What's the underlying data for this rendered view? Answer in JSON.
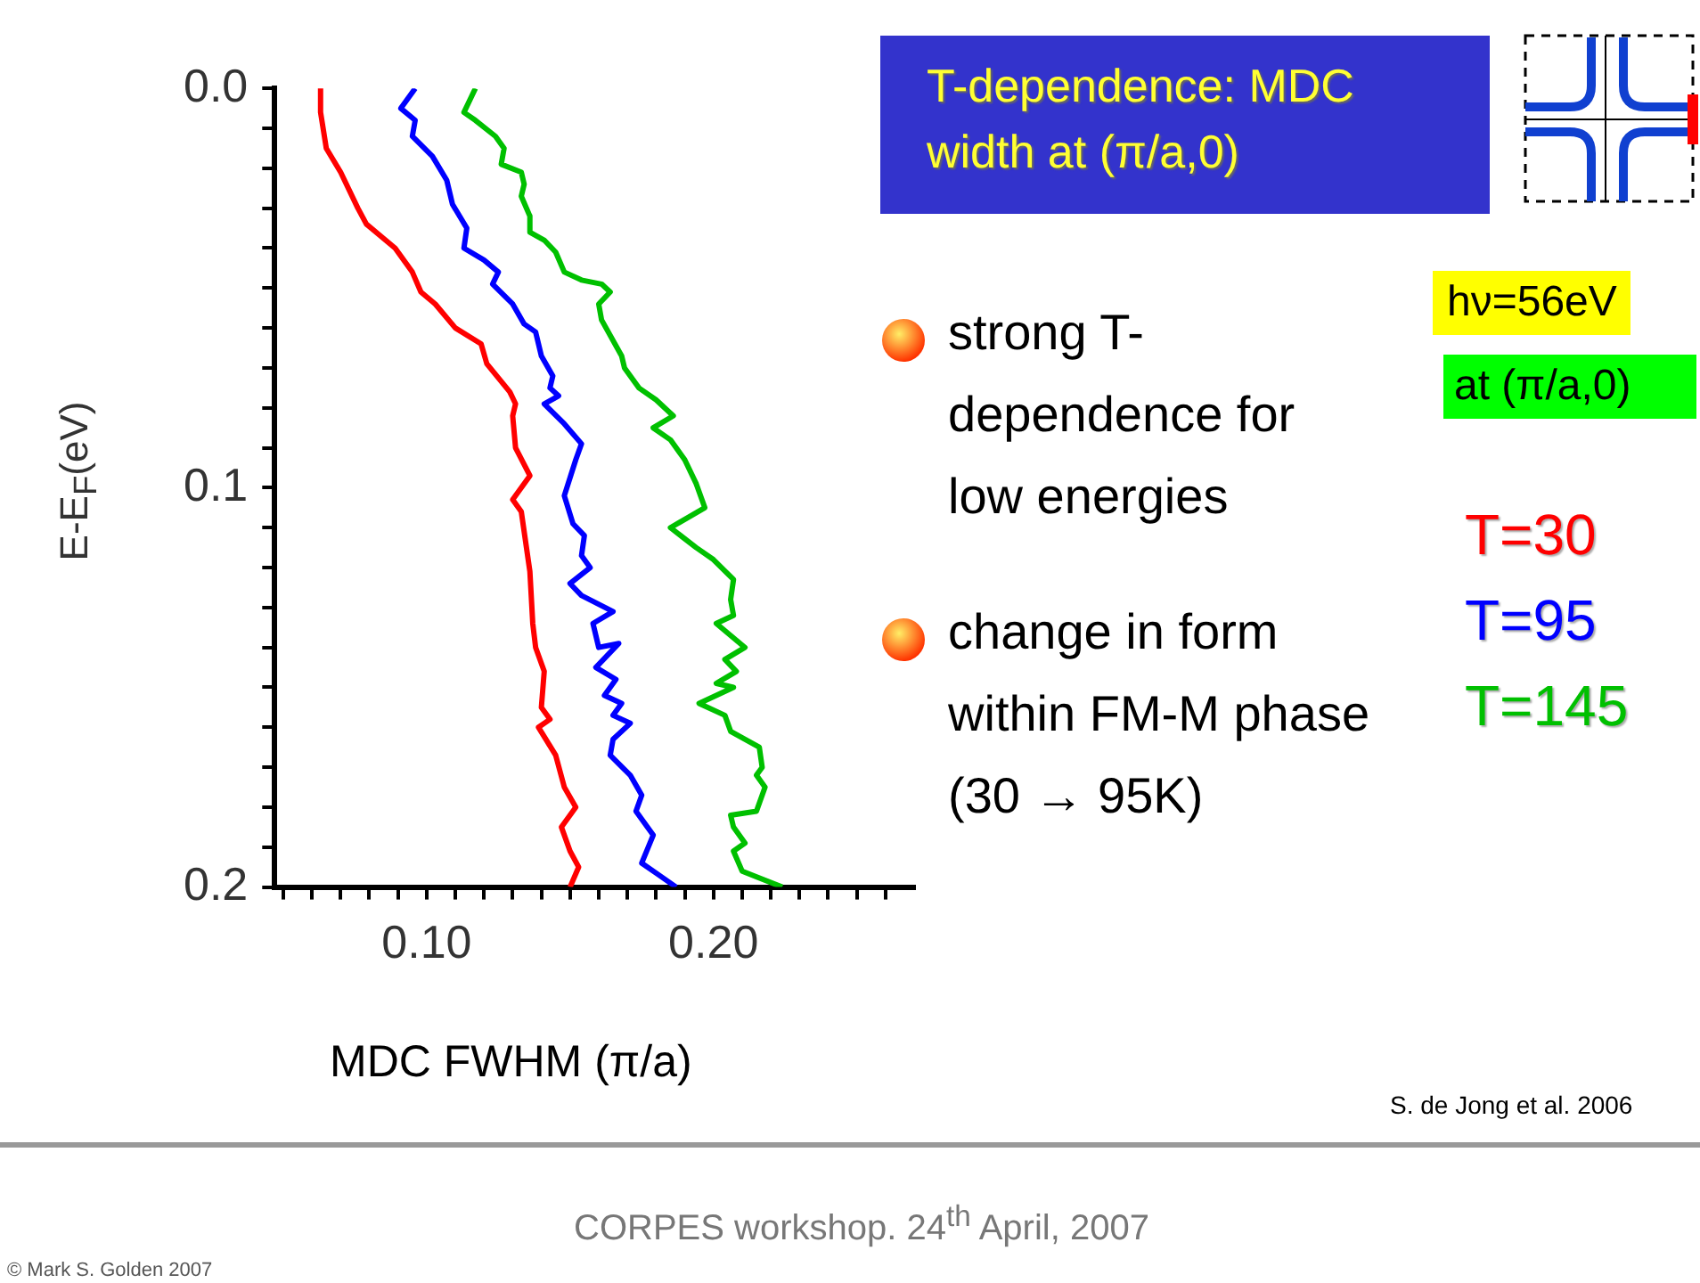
{
  "chart_data": {
    "type": "line",
    "title": "T-dependence: MDC width at (π/a,0)",
    "xlabel": "MDC FWHM (π/a)",
    "ylabel": "E-E$_{F}$(eV)",
    "xlim": [
      0.047,
      0.27
    ],
    "xticks": [
      {
        "value": 0.05,
        "label": null
      },
      {
        "value": 0.06,
        "label": null
      },
      {
        "value": 0.07,
        "label": null
      },
      {
        "value": 0.08,
        "label": null
      },
      {
        "value": 0.09,
        "label": null
      },
      {
        "value": 0.1,
        "label": "0.10"
      },
      {
        "value": 0.11,
        "label": null
      },
      {
        "value": 0.12,
        "label": null
      },
      {
        "value": 0.13,
        "label": null
      },
      {
        "value": 0.14,
        "label": null
      },
      {
        "value": 0.15,
        "label": null
      },
      {
        "value": 0.16,
        "label": null
      },
      {
        "value": 0.17,
        "label": null
      },
      {
        "value": 0.18,
        "label": null
      },
      {
        "value": 0.19,
        "label": null
      },
      {
        "value": 0.2,
        "label": "0.20"
      },
      {
        "value": 0.21,
        "label": null
      },
      {
        "value": 0.22,
        "label": null
      },
      {
        "value": 0.23,
        "label": null
      },
      {
        "value": 0.24,
        "label": null
      },
      {
        "value": 0.25,
        "label": null
      },
      {
        "value": 0.26,
        "label": null
      }
    ],
    "ylim": [
      0.2,
      0.0
    ],
    "yticks": [
      {
        "value": 0,
        "label": "0.0"
      },
      {
        "value": 0.01,
        "label": null
      },
      {
        "value": 0.02,
        "label": null
      },
      {
        "value": 0.03,
        "label": null
      },
      {
        "value": 0.04,
        "label": null
      },
      {
        "value": 0.05,
        "label": null
      },
      {
        "value": 0.06,
        "label": null
      },
      {
        "value": 0.07,
        "label": null
      },
      {
        "value": 0.08,
        "label": null
      },
      {
        "value": 0.09,
        "label": null
      },
      {
        "value": 0.1,
        "label": "0.1"
      },
      {
        "value": 0.11,
        "label": null
      },
      {
        "value": 0.12,
        "label": null
      },
      {
        "value": 0.13,
        "label": null
      },
      {
        "value": 0.14,
        "label": null
      },
      {
        "value": 0.15,
        "label": null
      },
      {
        "value": 0.16,
        "label": null
      },
      {
        "value": 0.17,
        "label": null
      },
      {
        "value": 0.18,
        "label": null
      },
      {
        "value": 0.19,
        "label": null
      },
      {
        "value": 0.2,
        "label": "0.2"
      }
    ],
    "grid": false,
    "legend": "right",
    "marker": "none",
    "line_style": "solid",
    "series": [
      {
        "name": "T=30",
        "color": "#ff0000",
        "x": [
          0.063,
          0.063,
          0.065,
          0.07,
          0.076,
          0.079,
          0.089,
          0.095,
          0.098,
          0.103,
          0.11,
          0.119,
          0.121,
          0.129,
          0.131,
          0.13,
          0.131,
          0.136,
          0.13,
          0.133,
          0.136,
          0.137,
          0.138,
          0.141,
          0.14,
          0.143,
          0.139,
          0.145,
          0.148,
          0.152,
          0.147,
          0.15,
          0.153,
          0.15
        ],
        "values": [
          0,
          0.006,
          0.015,
          0.021,
          0.03,
          0.034,
          0.04,
          0.046,
          0.051,
          0.054,
          0.06,
          0.064,
          0.069,
          0.076,
          0.079,
          0.082,
          0.09,
          0.097,
          0.103,
          0.106,
          0.121,
          0.134,
          0.14,
          0.146,
          0.155,
          0.158,
          0.16,
          0.167,
          0.175,
          0.18,
          0.185,
          0.191,
          0.195,
          0.2
        ]
      },
      {
        "name": "T=95",
        "color": "#0000ff",
        "x": [
          0.096,
          0.091,
          0.096,
          0.095,
          0.102,
          0.107,
          0.109,
          0.114,
          0.113,
          0.12,
          0.125,
          0.123,
          0.13,
          0.134,
          0.138,
          0.14,
          0.144,
          0.143,
          0.146,
          0.141,
          0.148,
          0.154,
          0.152,
          0.148,
          0.151,
          0.155,
          0.154,
          0.157,
          0.15,
          0.154,
          0.165,
          0.158,
          0.16,
          0.167,
          0.159,
          0.166,
          0.162,
          0.168,
          0.165,
          0.171,
          0.165,
          0.164,
          0.171,
          0.175,
          0.173,
          0.179,
          0.175,
          0.181,
          0.187
        ],
        "values": [
          0,
          0.005,
          0.008,
          0.012,
          0.017,
          0.023,
          0.029,
          0.035,
          0.04,
          0.043,
          0.046,
          0.049,
          0.054,
          0.059,
          0.061,
          0.067,
          0.072,
          0.075,
          0.077,
          0.079,
          0.084,
          0.089,
          0.093,
          0.102,
          0.109,
          0.112,
          0.117,
          0.12,
          0.124,
          0.127,
          0.131,
          0.134,
          0.14,
          0.139,
          0.145,
          0.148,
          0.152,
          0.154,
          0.157,
          0.159,
          0.163,
          0.167,
          0.172,
          0.177,
          0.181,
          0.187,
          0.194,
          0.197,
          0.2
        ]
      },
      {
        "name": "T=145",
        "color": "#00c000",
        "x": [
          0.117,
          0.113,
          0.117,
          0.124,
          0.127,
          0.126,
          0.133,
          0.134,
          0.133,
          0.136,
          0.136,
          0.141,
          0.145,
          0.148,
          0.154,
          0.161,
          0.164,
          0.16,
          0.161,
          0.168,
          0.169,
          0.174,
          0.18,
          0.186,
          0.179,
          0.185,
          0.19,
          0.194,
          0.197,
          0.185,
          0.194,
          0.2,
          0.207,
          0.206,
          0.207,
          0.201,
          0.211,
          0.204,
          0.208,
          0.201,
          0.207,
          0.195,
          0.204,
          0.206,
          0.216,
          0.217,
          0.215,
          0.218,
          0.215,
          0.206,
          0.207,
          0.211,
          0.207,
          0.21,
          0.224
        ],
        "values": [
          0,
          0.006,
          0.008,
          0.012,
          0.015,
          0.019,
          0.021,
          0.024,
          0.027,
          0.032,
          0.036,
          0.038,
          0.041,
          0.046,
          0.048,
          0.049,
          0.051,
          0.054,
          0.058,
          0.067,
          0.07,
          0.075,
          0.078,
          0.082,
          0.085,
          0.088,
          0.093,
          0.099,
          0.105,
          0.11,
          0.115,
          0.118,
          0.123,
          0.128,
          0.132,
          0.134,
          0.14,
          0.143,
          0.146,
          0.149,
          0.15,
          0.154,
          0.157,
          0.161,
          0.165,
          0.17,
          0.172,
          0.175,
          0.181,
          0.182,
          0.185,
          0.189,
          0.191,
          0.196,
          0.2
        ]
      }
    ],
    "annotations": [
      "hν=56eV",
      "at (π/a,0)",
      "strong T-\ndependence for\nlow energies",
      "change in form\nwithin FM-M phase\n(30 → 95K)",
      "S. de Jong et al. 2006",
      "CORPES workshop.  24$^{th}$ April, 2007",
      "© Mark S. Golden 2007"
    ]
  }
}
